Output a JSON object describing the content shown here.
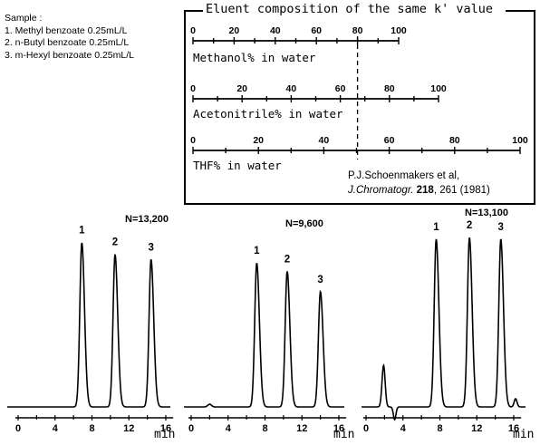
{
  "sample": {
    "heading": "Sample :",
    "items": [
      "1. Methyl benzoate 0.25mL/L",
      "2. n-Butyl benzoate 0.25mL/L",
      "3. m-Hexyl benzoate 0.25mL/L"
    ]
  },
  "eluent_box": {
    "title": "Eluent composition of the same k' value",
    "scales": [
      {
        "label": "Methanol% in water",
        "ticks": [
          "0",
          "20",
          "40",
          "60",
          "80",
          "100"
        ]
      },
      {
        "label": "Acetonitrile% in water",
        "ticks": [
          "0",
          "20",
          "40",
          "60",
          "80",
          "100"
        ]
      },
      {
        "label": "THF% in water",
        "ticks": [
          "0",
          "20",
          "40",
          "60",
          "80",
          "100"
        ]
      }
    ],
    "equivalent_line": {
      "methanol_pct": 80,
      "acetonitrile_pct": 68,
      "thf_pct": 50
    },
    "citation": {
      "authors": "P.J.Schoenmakers et al,",
      "journal": "J.Chromatogr.",
      "volume": "218",
      "pages_year": ", 261 (1981)"
    }
  },
  "chromatograms": [
    {
      "plate_count": "N=13,200",
      "axis_ticks": [
        "0",
        "4",
        "8",
        "12",
        "16"
      ],
      "axis_unit": "min",
      "peaks": [
        {
          "label": "1",
          "time_min": 6.9,
          "height": 0.97
        },
        {
          "label": "2",
          "time_min": 10.5,
          "height": 0.9
        },
        {
          "label": "3",
          "time_min": 14.4,
          "height": 0.87
        }
      ]
    },
    {
      "plate_count": "N=9,600",
      "axis_ticks": [
        "0",
        "4",
        "8",
        "12",
        "16"
      ],
      "axis_unit": "min",
      "peaks": [
        {
          "label": "1",
          "time_min": 7.1,
          "height": 0.85
        },
        {
          "label": "2",
          "time_min": 10.4,
          "height": 0.8
        },
        {
          "label": "3",
          "time_min": 14.0,
          "height": 0.68
        }
      ]
    },
    {
      "plate_count": "N=13,100",
      "axis_ticks": [
        "0",
        "4",
        "8",
        "12",
        "16"
      ],
      "axis_unit": "min",
      "peaks": [
        {
          "label": "1",
          "time_min": 7.6,
          "height": 0.99
        },
        {
          "label": "2",
          "time_min": 11.2,
          "height": 1.0
        },
        {
          "label": "3",
          "time_min": 14.6,
          "height": 0.99
        }
      ]
    }
  ]
}
